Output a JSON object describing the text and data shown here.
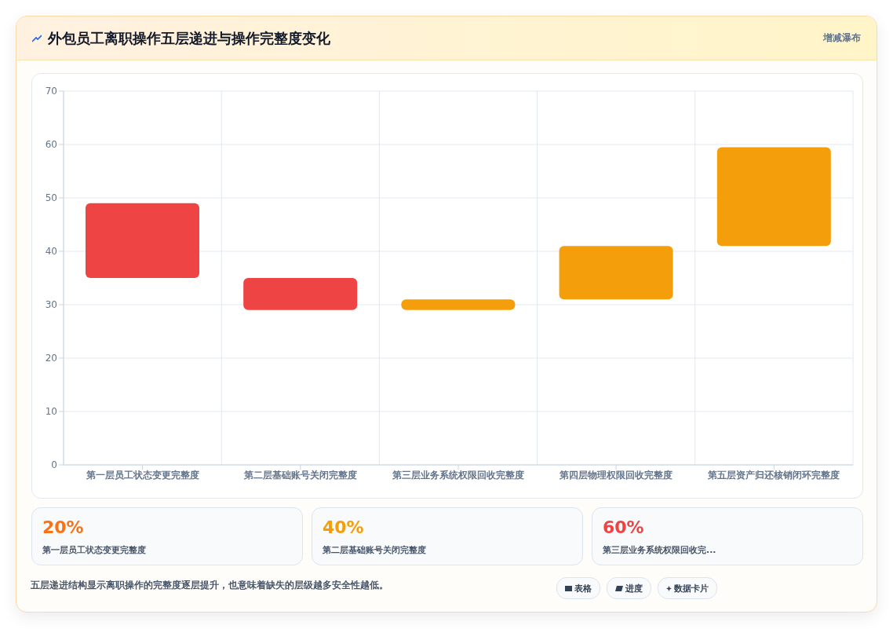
{
  "chart_data": {
    "type": "bar",
    "title": "外包员工离职操作五层递进与操作完整度变化",
    "categories": [
      "第一层员工状态变更完整度",
      "第二层基础账号关闭完整度",
      "第三层业务系统权限回收完整度",
      "第四层物理权限回收完整度",
      "第五层资产归还核销闭环完整度"
    ],
    "base": [
      35,
      29,
      29,
      31,
      41
    ],
    "values": [
      14,
      6,
      2,
      10,
      18.5
    ],
    "colors": [
      "#ef4444",
      "#ef4444",
      "#f59e0b",
      "#f59e0b",
      "#f59e0b"
    ],
    "ylim": [
      0,
      70
    ],
    "yticks": [
      0,
      10,
      20,
      30,
      40,
      50,
      60,
      70
    ],
    "grid": true,
    "legend": false,
    "annotations": [
      "增减瀑布",
      "20%",
      "第一层员工状态变更完整度",
      "40%",
      "第二层基础账号关闭完整度",
      "60%",
      "第三层业务系统权限回收完...",
      "五层递进结构显示离职操作的完整度逐层提升，也意味着缺失的层级越多安全性越低。",
      "表格",
      "进度",
      "数据卡片"
    ]
  }
}
